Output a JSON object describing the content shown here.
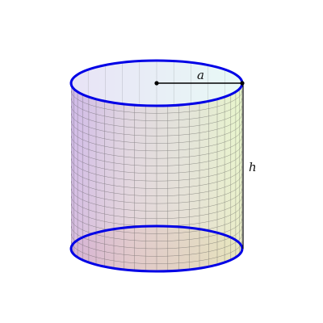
{
  "figure": {
    "radius_label": "a",
    "height_label": "h"
  },
  "colors": {
    "rim": "#0000e6",
    "dimension_line": "#000000",
    "mesh": "#555555",
    "gradient_left": "#b07fd9",
    "gradient_mid": "#b8a8a8",
    "gradient_right": "#d8f0a8",
    "top_cap": "#d6ecf5",
    "bottom_cap": "#f6d8d8"
  }
}
